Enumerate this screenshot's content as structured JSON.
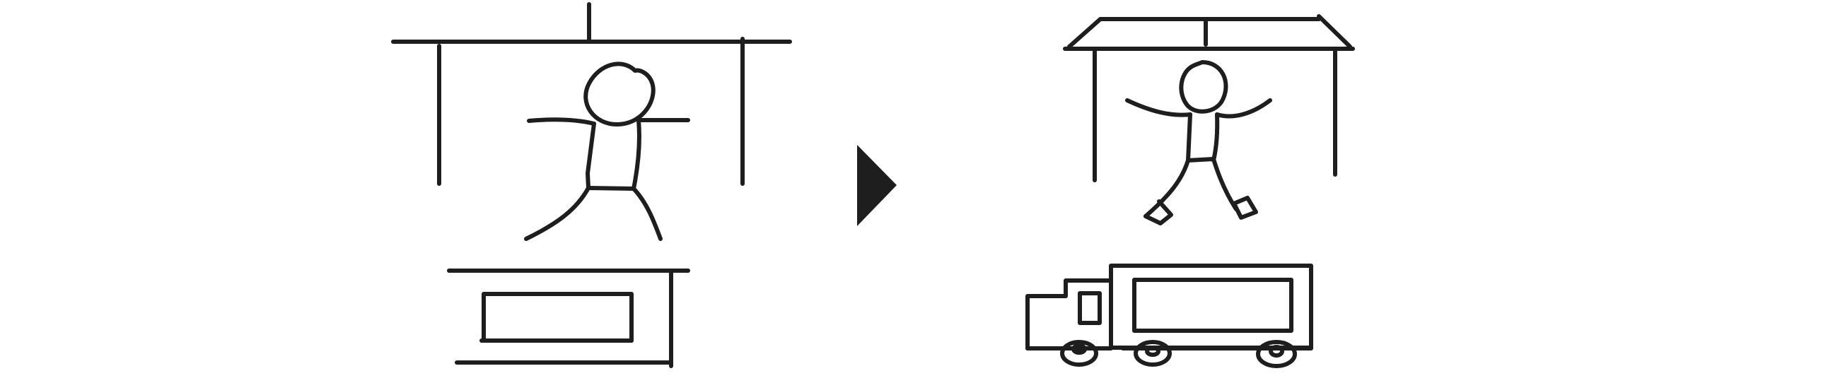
{
  "diagram": {
    "panels": [
      {
        "name": "before-scene",
        "elements": [
          "frame",
          "stick-figure",
          "table",
          "box"
        ]
      },
      {
        "name": "after-scene",
        "elements": [
          "roofed-frame",
          "stick-figure",
          "truck"
        ]
      }
    ],
    "connector": {
      "icon": "arrow-right-icon"
    },
    "colors": {
      "ink": "#1e1e1e",
      "background": "#ffffff"
    }
  }
}
